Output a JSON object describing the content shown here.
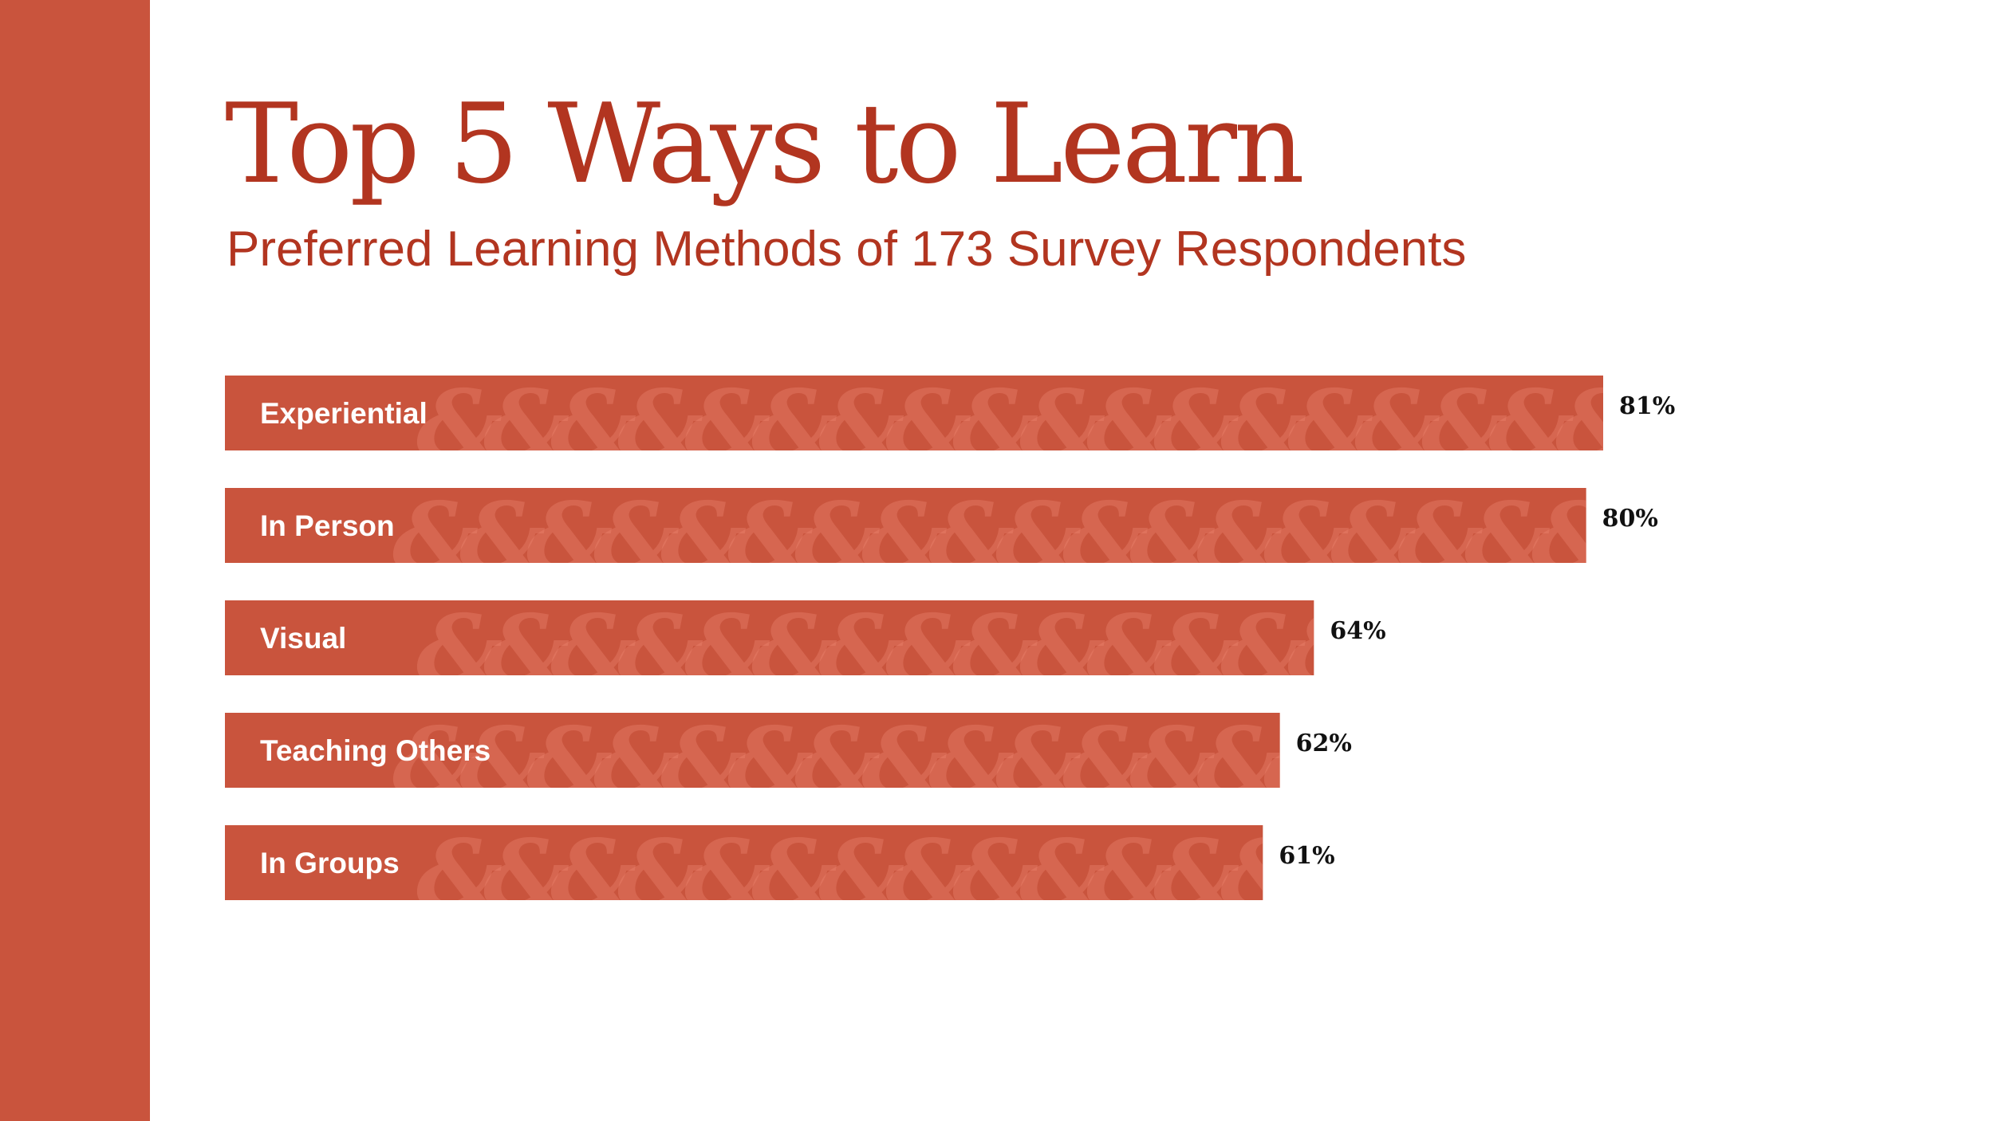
{
  "title": "Top 5 Ways to Learn",
  "subtitle": "Preferred Learning Methods of 173 Survey Respondents",
  "colors": {
    "band": "#c9543d",
    "bar": "#c9543d",
    "title": "#b23520",
    "pattern": "#f08a76"
  },
  "pattern_glyph": "&",
  "chart_data": {
    "type": "bar",
    "orientation": "horizontal",
    "title": "Top 5 Ways to Learn",
    "subtitle": "Preferred Learning Methods of 173 Survey Respondents",
    "categories": [
      "Experiential",
      "In Person",
      "Visual",
      "Teaching Others",
      "In Groups"
    ],
    "values": [
      81,
      80,
      64,
      62,
      61
    ],
    "value_labels": [
      "81%",
      "80%",
      "64%",
      "62%",
      "61%"
    ],
    "unit": "%",
    "xlim": [
      0,
      81
    ],
    "grid": false,
    "legend": "none"
  }
}
